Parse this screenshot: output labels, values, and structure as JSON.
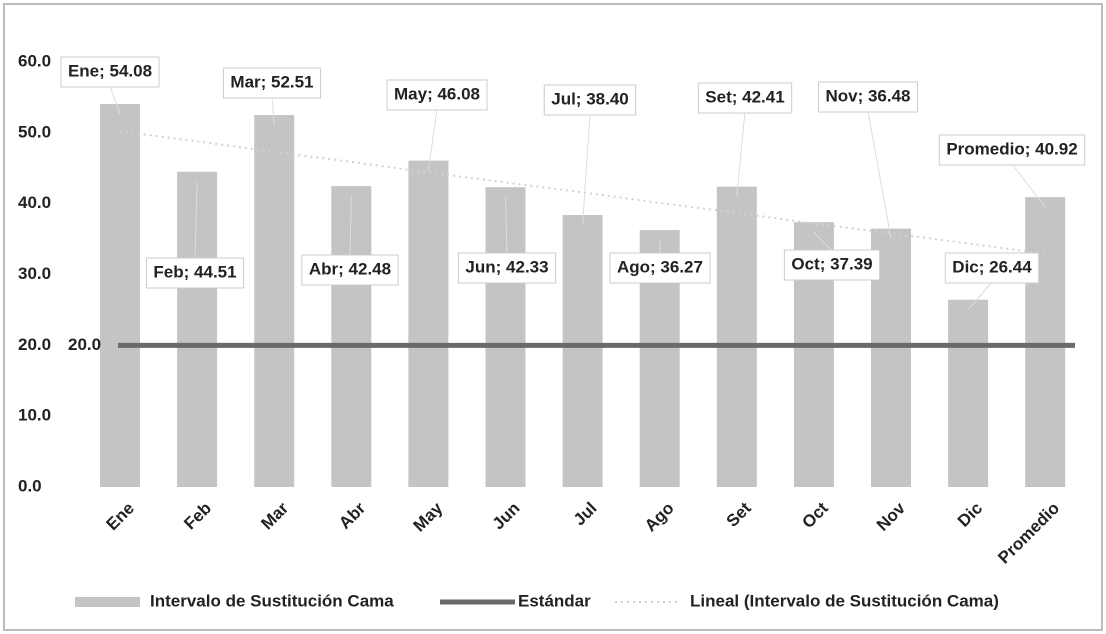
{
  "chart_data": {
    "type": "bar",
    "categories": [
      "Ene",
      "Feb",
      "Mar",
      "Abr",
      "May",
      "Jun",
      "Jul",
      "Ago",
      "Set",
      "Oct",
      "Nov",
      "Dic",
      "Promedio"
    ],
    "series": [
      {
        "name": "Intervalo de Sustitución Cama",
        "type": "bar",
        "color": "#c4c4c4",
        "values": [
          54.08,
          44.51,
          52.51,
          42.48,
          46.08,
          42.33,
          38.4,
          36.27,
          42.41,
          37.39,
          36.48,
          26.44,
          40.92
        ],
        "value_labels": [
          "Ene; 54.08",
          "Feb; 44.51",
          "Mar; 52.51",
          "Abr; 42.48",
          "May; 46.08",
          "Jun; 42.33",
          "Jul; 38.40",
          "Ago; 36.27",
          "Set; 42.41",
          "Oct; 37.39",
          "Nov; 36.48",
          "Dic; 26.44",
          "Promedio; 40.92"
        ]
      },
      {
        "name": "Estándar",
        "type": "line",
        "color": "#6a6a6a",
        "values": [
          20,
          20,
          20,
          20,
          20,
          20,
          20,
          20,
          20,
          20,
          20,
          20,
          20
        ],
        "value_labels": [
          "20.0",
          null,
          null,
          null,
          null,
          null,
          null,
          null,
          null,
          null,
          null,
          null,
          null
        ]
      },
      {
        "name": "Lineal (Intervalo de Sustitución Cama)",
        "type": "trend",
        "color": "#d2d2d2",
        "values": [
          50.2,
          48.8,
          47.3,
          45.9,
          44.4,
          43.0,
          41.6,
          40.1,
          38.7,
          37.2,
          35.8,
          34.4,
          32.9
        ]
      }
    ],
    "ylim": [
      0,
      60
    ],
    "yticks": [
      {
        "value": 0,
        "label": "0.0"
      },
      {
        "value": 10,
        "label": "10.0"
      },
      {
        "value": 20,
        "label": "20.0"
      },
      {
        "value": 30,
        "label": "30.0"
      },
      {
        "value": 40,
        "label": "40.0"
      },
      {
        "value": 50,
        "label": "50.0"
      },
      {
        "value": 60,
        "label": "60.0"
      }
    ],
    "legend": "bottom"
  }
}
